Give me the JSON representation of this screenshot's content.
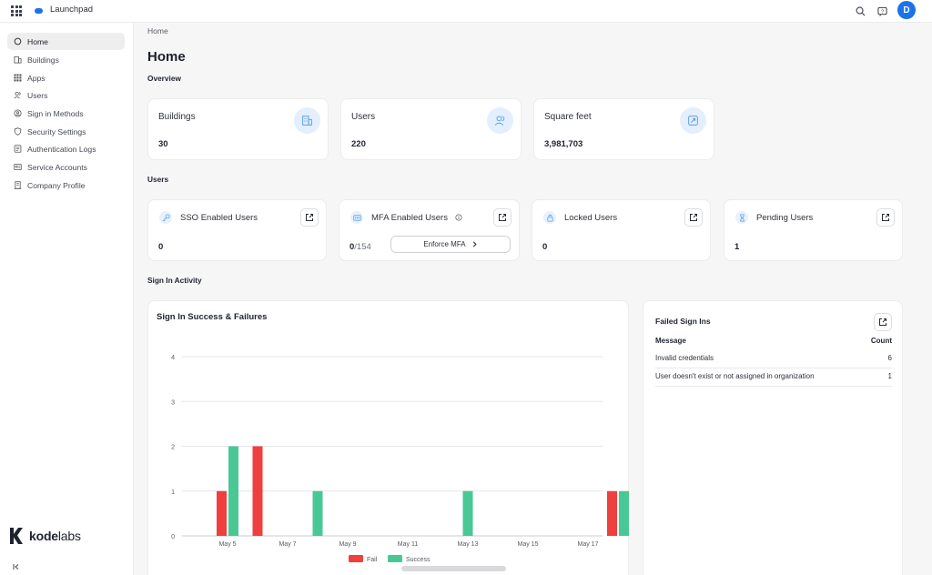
{
  "app": {
    "name": "Launchpad",
    "user_initial": "D",
    "brand_color": "#1a73e8"
  },
  "sidebar": {
    "items": [
      {
        "label": "Home",
        "icon": "home-icon",
        "active": true
      },
      {
        "label": "Buildings",
        "icon": "building-icon"
      },
      {
        "label": "Apps",
        "icon": "apps-grid-icon"
      },
      {
        "label": "Users",
        "icon": "users-icon"
      },
      {
        "label": "Sign in Methods",
        "icon": "sign-in-icon"
      },
      {
        "label": "Security Settings",
        "icon": "shield-icon"
      },
      {
        "label": "Authentication Logs",
        "icon": "log-icon"
      },
      {
        "label": "Service Accounts",
        "icon": "service-account-icon"
      },
      {
        "label": "Company Profile",
        "icon": "company-icon"
      }
    ],
    "logo_bold": "kode",
    "logo_light": "labs",
    "collapse_icon": "collapse-left-icon"
  },
  "breadcrumb": "Home",
  "page_title": "Home",
  "overview": {
    "title": "Overview",
    "cards": [
      {
        "label": "Buildings",
        "value": "30",
        "icon": "building-icon"
      },
      {
        "label": "Users",
        "value": "220",
        "icon": "users-icon"
      },
      {
        "label": "Square feet",
        "value": "3,981,703",
        "icon": "area-expand-icon"
      }
    ]
  },
  "users": {
    "title": "Users",
    "cards": [
      {
        "label": "SSO Enabled Users",
        "value": "0",
        "icon": "key-icon"
      },
      {
        "label": "MFA Enabled Users",
        "value": "0",
        "total": "/154",
        "icon": "mfa-icon",
        "action": "Enforce MFA"
      },
      {
        "label": "Locked Users",
        "value": "0",
        "icon": "lock-icon"
      },
      {
        "label": "Pending Users",
        "value": "1",
        "icon": "hourglass-icon"
      }
    ]
  },
  "sign_in_activity": {
    "title": "Sign In Activity",
    "chart_title": "Sign In Success & Failures",
    "failed": {
      "title": "Failed Sign Ins",
      "col_message": "Message",
      "col_count": "Count",
      "rows": [
        {
          "message": "Invalid credentials",
          "count": "6"
        },
        {
          "message": "User doesn't exist or not assigned in organization",
          "count": "1"
        }
      ]
    }
  },
  "chart_data": {
    "type": "bar",
    "title": "Sign In Success & Failures",
    "x_tick_labels": [
      "May 5",
      "May 7",
      "May 9",
      "May 11",
      "May 13",
      "May 15",
      "May 17"
    ],
    "y_ticks": [
      0,
      1,
      2,
      3,
      4
    ],
    "ylim": [
      0,
      4
    ],
    "grid": true,
    "legend_placement": "bottom-center",
    "series": [
      {
        "name": "Fail",
        "color": "#f03f3f",
        "points": [
          {
            "x": "May 5",
            "y": 1
          },
          {
            "x": "May 6",
            "y": 2
          },
          {
            "x": "May 18",
            "y": 1
          }
        ]
      },
      {
        "name": "Success",
        "color": "#49c896",
        "points": [
          {
            "x": "May 5",
            "y": 2
          },
          {
            "x": "May 8",
            "y": 1
          },
          {
            "x": "May 13",
            "y": 1
          },
          {
            "x": "May 18",
            "y": 1
          }
        ]
      }
    ]
  }
}
